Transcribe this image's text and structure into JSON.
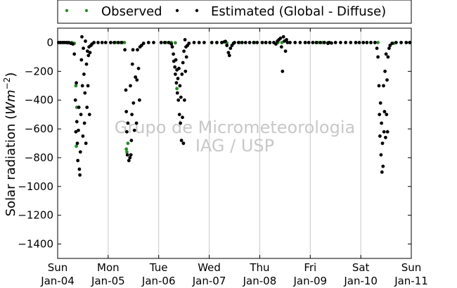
{
  "chart_data": {
    "type": "scatter",
    "title": "",
    "ylabel_prefix": "Solar radiation (",
    "ylabel_unit_base": "Wm",
    "ylabel_unit_exp": "−2",
    "ylabel_suffix": ")",
    "ylim": [
      -1500,
      100
    ],
    "yticks": [
      0,
      -200,
      -400,
      -600,
      -800,
      -1000,
      -1200,
      -1400
    ],
    "xlim": [
      0,
      7
    ],
    "xticks": [
      {
        "x": 0,
        "day": "Sun",
        "date": "Jan-04"
      },
      {
        "x": 1,
        "day": "Mon",
        "date": "Jan-05"
      },
      {
        "x": 2,
        "day": "Tue",
        "date": "Jan-06"
      },
      {
        "x": 3,
        "day": "Wed",
        "date": "Jan-07"
      },
      {
        "x": 4,
        "day": "Thu",
        "date": "Jan-08"
      },
      {
        "x": 5,
        "day": "Fri",
        "date": "Jan-09"
      },
      {
        "x": 6,
        "day": "Sat",
        "date": "Jan-10"
      },
      {
        "x": 7,
        "day": "Sun",
        "date": "Jan-11"
      }
    ],
    "grid_x": true,
    "grid_y": false,
    "legend_placement": "top",
    "series": [
      {
        "name": "Observed",
        "color": "#2a8a2a",
        "points": [
          [
            0.05,
            0
          ],
          [
            0.12,
            0
          ],
          [
            0.2,
            -2
          ],
          [
            0.28,
            0
          ],
          [
            0.33,
            -5
          ],
          [
            0.36,
            -300
          ],
          [
            0.37,
            -720
          ],
          [
            0.38,
            -450
          ],
          [
            1.05,
            0
          ],
          [
            1.15,
            0
          ],
          [
            1.25,
            0
          ],
          [
            1.32,
            0
          ],
          [
            1.36,
            -740
          ],
          [
            1.37,
            -760
          ],
          [
            1.39,
            -700
          ],
          [
            2.05,
            0
          ],
          [
            2.15,
            0
          ],
          [
            2.25,
            0
          ],
          [
            2.33,
            -2
          ],
          [
            2.36,
            -320
          ],
          [
            3.05,
            0
          ],
          [
            3.15,
            0
          ],
          [
            3.25,
            0
          ],
          [
            3.35,
            -3
          ],
          [
            3.6,
            0
          ],
          [
            3.9,
            0
          ],
          [
            4.05,
            0
          ],
          [
            4.12,
            0
          ],
          [
            4.2,
            0
          ],
          [
            4.28,
            0
          ],
          [
            4.36,
            0
          ],
          [
            4.44,
            0
          ],
          [
            4.9,
            0
          ],
          [
            5.05,
            0
          ],
          [
            5.15,
            0
          ],
          [
            5.25,
            0
          ],
          [
            5.35,
            0
          ],
          [
            5.9,
            0
          ],
          [
            6.05,
            0
          ],
          [
            6.12,
            0
          ],
          [
            6.2,
            0
          ],
          [
            6.28,
            0
          ],
          [
            6.34,
            0
          ],
          [
            6.65,
            -5
          ],
          [
            6.8,
            0
          ],
          [
            6.9,
            0
          ],
          [
            6.97,
            0
          ]
        ]
      },
      {
        "name": "Estimated (Global - Diffuse)",
        "color": "#000000",
        "points": [
          [
            0.02,
            0
          ],
          [
            0.06,
            0
          ],
          [
            0.1,
            0
          ],
          [
            0.14,
            0
          ],
          [
            0.18,
            0
          ],
          [
            0.22,
            0
          ],
          [
            0.26,
            -5
          ],
          [
            0.3,
            -10
          ],
          [
            0.33,
            -80
          ],
          [
            0.35,
            -400
          ],
          [
            0.36,
            -620
          ],
          [
            0.37,
            -280
          ],
          [
            0.38,
            -550
          ],
          [
            0.39,
            -700
          ],
          [
            0.4,
            -820
          ],
          [
            0.41,
            -610
          ],
          [
            0.42,
            -450
          ],
          [
            0.43,
            -880
          ],
          [
            0.44,
            -920
          ],
          [
            0.45,
            -760
          ],
          [
            0.46,
            -500
          ],
          [
            0.47,
            -120
          ],
          [
            0.48,
            40
          ],
          [
            0.49,
            -300
          ],
          [
            0.5,
            -650
          ],
          [
            0.51,
            -40
          ],
          [
            0.52,
            -220
          ],
          [
            0.53,
            -560
          ],
          [
            0.54,
            -350
          ],
          [
            0.55,
            10
          ],
          [
            0.56,
            -700
          ],
          [
            0.57,
            -150
          ],
          [
            0.58,
            -450
          ],
          [
            0.59,
            -60
          ],
          [
            0.6,
            -300
          ],
          [
            0.61,
            -90
          ],
          [
            0.62,
            -30
          ],
          [
            0.63,
            -500
          ],
          [
            0.64,
            -70
          ],
          [
            0.66,
            -20
          ],
          [
            0.68,
            -10
          ],
          [
            0.72,
            0
          ],
          [
            0.8,
            0
          ],
          [
            0.88,
            0
          ],
          [
            0.95,
            0
          ],
          [
            1.05,
            0
          ],
          [
            1.12,
            0
          ],
          [
            1.2,
            0
          ],
          [
            1.27,
            0
          ],
          [
            1.33,
            -50
          ],
          [
            1.35,
            -330
          ],
          [
            1.36,
            -480
          ],
          [
            1.37,
            -620
          ],
          [
            1.38,
            -780
          ],
          [
            1.39,
            -560
          ],
          [
            1.41,
            -820
          ],
          [
            1.43,
            -800
          ],
          [
            1.44,
            -300
          ],
          [
            1.45,
            -780
          ],
          [
            1.46,
            -680
          ],
          [
            1.47,
            -500
          ],
          [
            1.48,
            -150
          ],
          [
            1.49,
            -50
          ],
          [
            1.5,
            -420
          ],
          [
            1.52,
            -610
          ],
          [
            1.54,
            -240
          ],
          [
            1.56,
            -560
          ],
          [
            1.57,
            -260
          ],
          [
            1.58,
            -50
          ],
          [
            1.6,
            -180
          ],
          [
            1.62,
            -400
          ],
          [
            1.63,
            -30
          ],
          [
            1.66,
            -20
          ],
          [
            1.7,
            -5
          ],
          [
            1.8,
            0
          ],
          [
            1.9,
            0
          ],
          [
            2.05,
            0
          ],
          [
            2.12,
            0
          ],
          [
            2.2,
            0
          ],
          [
            2.25,
            -10
          ],
          [
            2.27,
            -30
          ],
          [
            2.29,
            -80
          ],
          [
            2.3,
            -130
          ],
          [
            2.32,
            -170
          ],
          [
            2.33,
            -220
          ],
          [
            2.34,
            -120
          ],
          [
            2.35,
            -280
          ],
          [
            2.36,
            -190
          ],
          [
            2.37,
            -350
          ],
          [
            2.38,
            -250
          ],
          [
            2.39,
            -400
          ],
          [
            2.4,
            -180
          ],
          [
            2.41,
            -500
          ],
          [
            2.42,
            -300
          ],
          [
            2.43,
            -560
          ],
          [
            2.44,
            -380
          ],
          [
            2.45,
            -680
          ],
          [
            2.46,
            -220
          ],
          [
            2.47,
            -520
          ],
          [
            2.48,
            -140
          ],
          [
            2.49,
            -700
          ],
          [
            2.5,
            -60
          ],
          [
            2.51,
            -400
          ],
          [
            2.52,
            20
          ],
          [
            2.53,
            -200
          ],
          [
            2.54,
            -30
          ],
          [
            2.55,
            -100
          ],
          [
            2.57,
            -20
          ],
          [
            2.6,
            -5
          ],
          [
            2.7,
            0
          ],
          [
            2.8,
            0
          ],
          [
            2.9,
            0
          ],
          [
            3.05,
            0
          ],
          [
            3.15,
            0
          ],
          [
            3.25,
            0
          ],
          [
            3.3,
            5
          ],
          [
            3.32,
            8
          ],
          [
            3.35,
            -20
          ],
          [
            3.38,
            -70
          ],
          [
            3.4,
            -90
          ],
          [
            3.42,
            -40
          ],
          [
            3.45,
            -20
          ],
          [
            3.48,
            -5
          ],
          [
            3.5,
            0
          ],
          [
            3.58,
            0
          ],
          [
            3.65,
            0
          ],
          [
            3.72,
            0
          ],
          [
            3.8,
            0
          ],
          [
            3.88,
            0
          ],
          [
            3.95,
            0
          ],
          [
            4.05,
            0
          ],
          [
            4.12,
            0
          ],
          [
            4.2,
            0
          ],
          [
            4.28,
            0
          ],
          [
            4.32,
            -10
          ],
          [
            4.35,
            10
          ],
          [
            4.38,
            20
          ],
          [
            4.41,
            30
          ],
          [
            4.43,
            -30
          ],
          [
            4.45,
            -200
          ],
          [
            4.47,
            40
          ],
          [
            4.49,
            10
          ],
          [
            4.51,
            -60
          ],
          [
            4.53,
            20
          ],
          [
            4.55,
            0
          ],
          [
            4.6,
            0
          ],
          [
            4.7,
            0
          ],
          [
            4.8,
            0
          ],
          [
            4.9,
            0
          ],
          [
            4.97,
            0
          ],
          [
            5.05,
            0
          ],
          [
            5.12,
            0
          ],
          [
            5.2,
            0
          ],
          [
            5.28,
            0
          ],
          [
            5.35,
            -5
          ],
          [
            5.38,
            0
          ],
          [
            5.42,
            -3
          ],
          [
            5.5,
            0
          ],
          [
            5.6,
            0
          ],
          [
            5.7,
            0
          ],
          [
            5.8,
            0
          ],
          [
            5.9,
            0
          ],
          [
            5.97,
            0
          ],
          [
            6.05,
            0
          ],
          [
            6.12,
            0
          ],
          [
            6.2,
            0
          ],
          [
            6.28,
            0
          ],
          [
            6.32,
            -40
          ],
          [
            6.34,
            -100
          ],
          [
            6.36,
            -300
          ],
          [
            6.37,
            -500
          ],
          [
            6.38,
            -650
          ],
          [
            6.39,
            -420
          ],
          [
            6.4,
            -780
          ],
          [
            6.41,
            -560
          ],
          [
            6.42,
            -900
          ],
          [
            6.43,
            -700
          ],
          [
            6.44,
            -860
          ],
          [
            6.45,
            -300
          ],
          [
            6.46,
            -620
          ],
          [
            6.47,
            -480
          ],
          [
            6.48,
            -200
          ],
          [
            6.49,
            -660
          ],
          [
            6.5,
            -80
          ],
          [
            6.51,
            -500
          ],
          [
            6.52,
            -260
          ],
          [
            6.53,
            -620
          ],
          [
            6.54,
            -100
          ],
          [
            6.56,
            -40
          ],
          [
            6.58,
            -20
          ],
          [
            6.62,
            -5
          ],
          [
            6.7,
            0
          ],
          [
            6.8,
            0
          ],
          [
            6.9,
            0
          ],
          [
            6.97,
            0
          ]
        ]
      }
    ],
    "watermark_line1": "Grupo de Micrometeorologia",
    "watermark_line2": "IAG / USP"
  }
}
